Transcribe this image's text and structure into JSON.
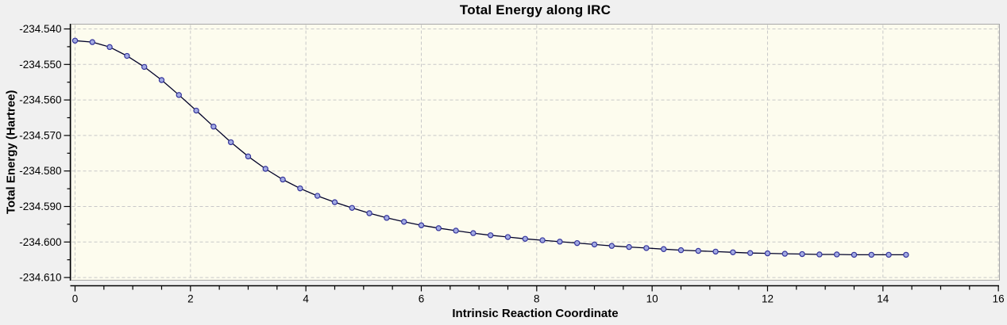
{
  "chart": {
    "title": "Total Energy along IRC",
    "xlabel": "Intrinsic Reaction Coordinate",
    "ylabel": "Total Energy (Hartree)"
  },
  "chart_data": {
    "type": "line",
    "title": "Total Energy along IRC",
    "xlabel": "Intrinsic Reaction Coordinate",
    "ylabel": "Total Energy (Hartree)",
    "xlim": [
      0,
      16
    ],
    "ylim": [
      -234.61,
      -234.54
    ],
    "grid": "dashed",
    "legend": "none",
    "x_ticks": {
      "values": [
        0,
        2,
        4,
        6,
        8,
        10,
        12,
        14,
        16
      ],
      "labels": [
        "0",
        "2",
        "4",
        "6",
        "8",
        "10",
        "12",
        "14",
        "16"
      ]
    },
    "y_ticks": {
      "values": [
        -234.54,
        -234.55,
        -234.56,
        -234.57,
        -234.58,
        -234.59,
        -234.6,
        -234.61
      ],
      "labels": [
        "-234.540",
        "-234.550",
        "-234.560",
        "-234.570",
        "-234.580",
        "-234.590",
        "-234.600",
        "-234.610"
      ]
    },
    "x_minor_step": 0.5,
    "y_minor_step": 0.005,
    "series": [
      {
        "name": "Total Energy",
        "marker": "circle",
        "x": [
          0.0,
          0.3,
          0.6,
          0.9,
          1.2,
          1.5,
          1.8,
          2.1,
          2.4,
          2.7,
          3.0,
          3.3,
          3.6,
          3.9,
          4.2,
          4.5,
          4.8,
          5.1,
          5.4,
          5.7,
          6.0,
          6.3,
          6.6,
          6.9,
          7.2,
          7.5,
          7.8,
          8.1,
          8.4,
          8.7,
          9.0,
          9.3,
          9.6,
          9.9,
          10.2,
          10.5,
          10.8,
          11.1,
          11.4,
          11.7,
          12.0,
          12.3,
          12.6,
          12.9,
          13.2,
          13.5,
          13.8,
          14.1,
          14.4
        ],
        "y": [
          -234.5433,
          -234.5437,
          -234.5451,
          -234.5476,
          -234.5507,
          -234.5544,
          -234.5586,
          -234.563,
          -234.5675,
          -234.5719,
          -234.5759,
          -234.5794,
          -234.5824,
          -234.5849,
          -234.587,
          -234.5888,
          -234.5904,
          -234.5919,
          -234.5932,
          -234.5943,
          -234.5953,
          -234.5961,
          -234.5968,
          -234.5975,
          -234.5981,
          -234.5986,
          -234.5991,
          -234.5995,
          -234.5999,
          -234.6003,
          -234.6007,
          -234.6011,
          -234.6014,
          -234.6017,
          -234.602,
          -234.6023,
          -234.6025,
          -234.6027,
          -234.6029,
          -234.6031,
          -234.6032,
          -234.6033,
          -234.6034,
          -234.6035,
          -234.6035,
          -234.6036,
          -234.6036,
          -234.6036,
          -234.6036
        ]
      }
    ],
    "colors": {
      "window_bg": "#f0f0f0",
      "plot_bg": "#fdfcee",
      "frame": "#a8a8a8",
      "grid": "#c8c8c8",
      "axis": "#000000",
      "line": "#000028",
      "marker_fill": "#a2aae2",
      "marker_stroke": "#34349c",
      "text": "#000000"
    }
  }
}
